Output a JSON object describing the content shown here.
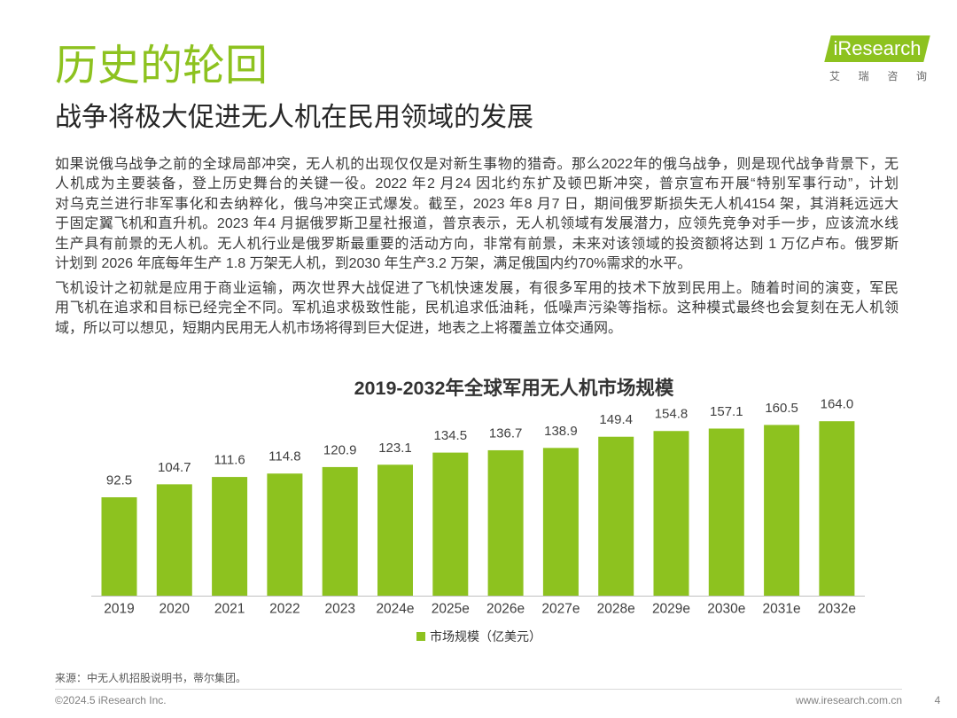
{
  "header": {
    "title": "历史的轮回",
    "subtitle": "战争将极大促进无人机在民用领域的发展"
  },
  "logo": {
    "wordmark": "iResearch",
    "tagline": "艾 瑞 咨 询"
  },
  "body": {
    "paragraphs": [
      {
        "lines": [
          "如果说俄乌战争之前的全球局部冲突，无人机的出现仅仅是对新生事物的猎奇。那么2022年的俄乌战争，则是现代战争背景下，无",
          "人机成为主要装备，登上历史舞台的关键一役。2022 年2 月24 因北约东扩及顿巴斯冲突，普京宣布开展“特别军事行动”，计划",
          "对乌克兰进行非军事化和去纳粹化，俄乌冲突正式爆发。截至，2023 年8 月7 日，期间俄罗斯损失无人机4154 架，其消耗远远大",
          "于固定翼飞机和直升机。2023 年4 月据俄罗斯卫星社报道，普京表示，无人机领域有发展潜力，应领先竞争对手一步，应该流水线",
          "生产具有前景的无人机。无人机行业是俄罗斯最重要的活动方向，非常有前景，未来对该领域的投资额将达到 1 万亿卢布。俄罗斯",
          "计划到 2026 年底每年生产 1.8 万架无人机，到2030 年生产3.2 万架，满足俄国内约70%需求的水平。"
        ]
      },
      {
        "lines": [
          "飞机设计之初就是应用于商业运输，两次世界大战促进了飞机快速发展，有很多军用的技术下放到民用上。随着时间的演变，军民",
          "用飞机在追求和目标已经完全不同。军机追求极致性能，民机追求低油耗，低噪声污染等指标。这种模式最终也会复刻在无人机领",
          "域，所以可以想见，短期内民用无人机市场将得到巨大促进，地表之上将覆盖立体交通网。"
        ]
      }
    ]
  },
  "chart_data": {
    "type": "bar",
    "title": "2019-2032年全球军用无人机市场规模",
    "categories": [
      "2019",
      "2020",
      "2021",
      "2022",
      "2023",
      "2024e",
      "2025e",
      "2026e",
      "2027e",
      "2028e",
      "2029e",
      "2030e",
      "2031e",
      "2032e"
    ],
    "series": [
      {
        "name": "市场规模（亿美元）",
        "values": [
          92.5,
          104.7,
          111.6,
          114.8,
          120.9,
          123.1,
          134.5,
          136.7,
          138.9,
          149.4,
          154.8,
          157.1,
          160.5,
          164.0
        ],
        "color": "#8dc21f"
      }
    ],
    "data_labels": [
      "92.5",
      "104.7",
      "111.6",
      "114.8",
      "120.9",
      "123.1",
      "134.5",
      "136.7",
      "138.9",
      "149.4",
      "154.8",
      "157.1",
      "160.5",
      "164.0"
    ],
    "xlabel": "",
    "ylabel": "",
    "ylim": [
      0,
      180
    ],
    "grid": false,
    "legend": "bottom"
  },
  "source": "来源：中无人机招股说明书，蒂尔集团。",
  "footer": {
    "copyright": "©2024.5 iResearch Inc.",
    "website": "www.iresearch.com.cn",
    "page_number": "4"
  },
  "colors": {
    "accent": "#8dc21f",
    "text": "#333333"
  }
}
